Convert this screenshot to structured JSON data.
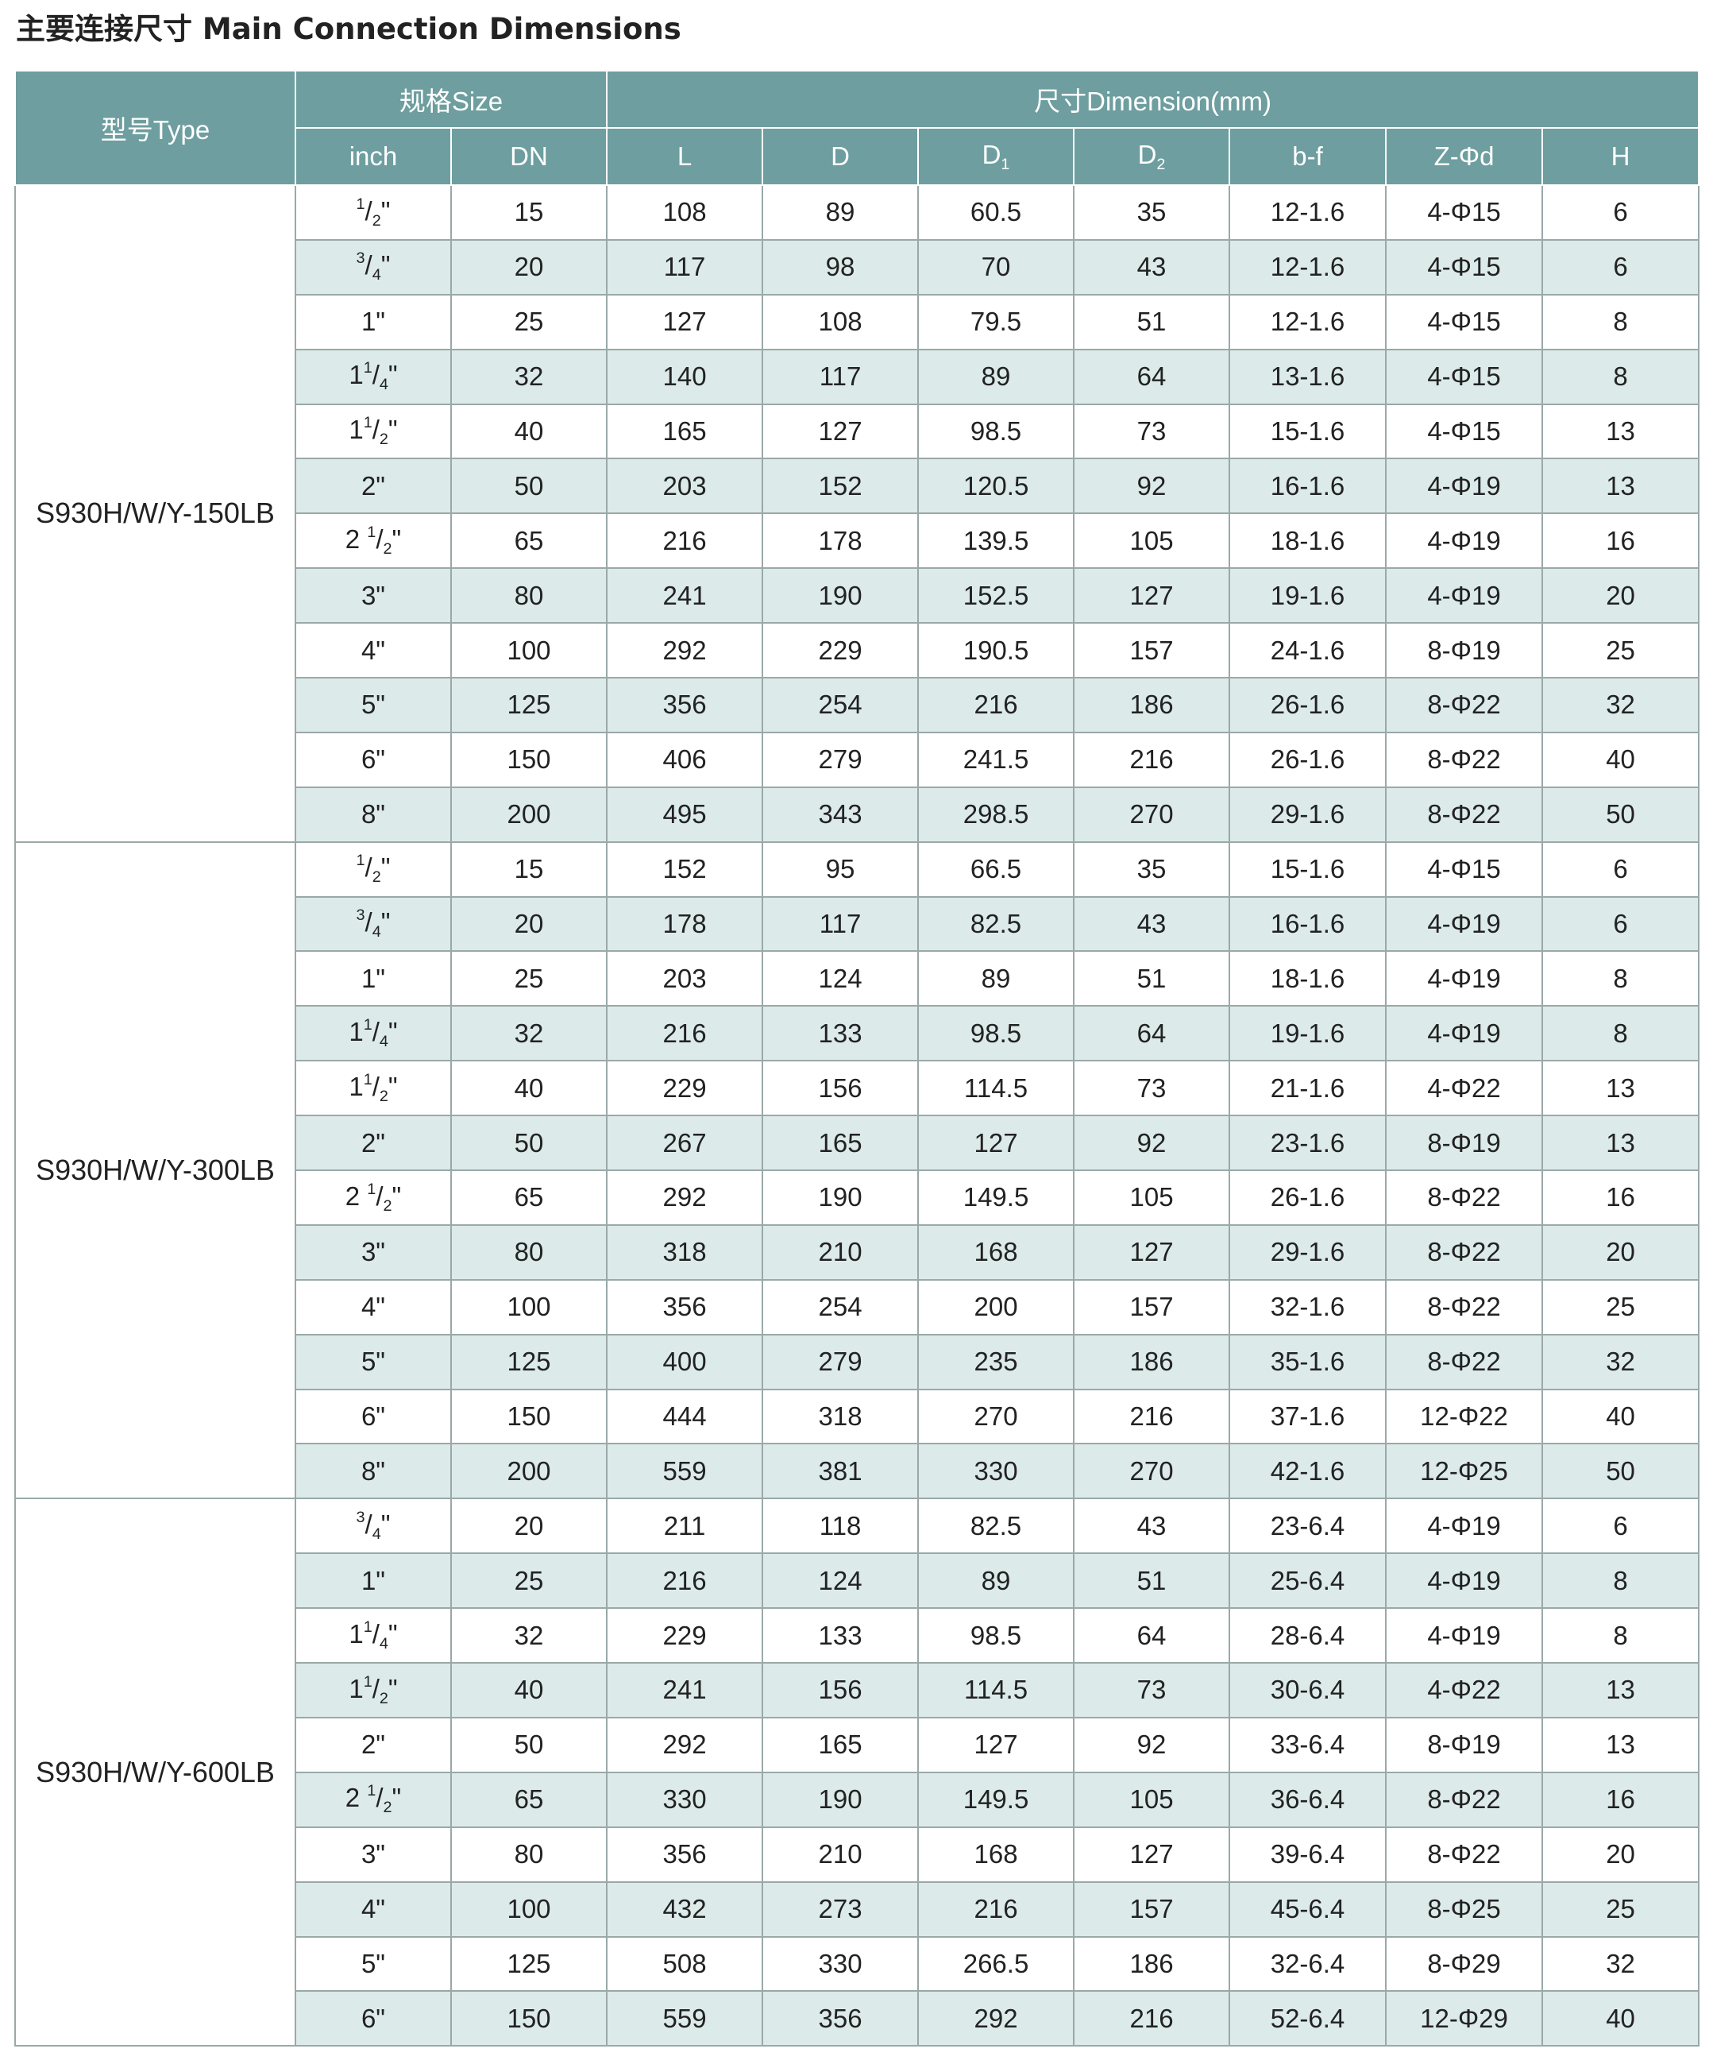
{
  "title": "主要连接尺寸 Main Connection Dimensions",
  "headers": {
    "type": "型号Type",
    "size": "规格Size",
    "dimension": "尺寸Dimension(mm)",
    "inch": "inch",
    "dn": "DN",
    "L": "L",
    "D": "D",
    "D1": "D1",
    "D2": "D2",
    "bf": "b-f",
    "zd": "Z-Φd",
    "H": "H"
  },
  "groups": [
    {
      "model": "S930H/W/Y-150LB",
      "rows": [
        {
          "inch": "1/2\"",
          "dn": "15",
          "L": "108",
          "D": "89",
          "D1": "60.5",
          "D2": "35",
          "bf": "12-1.6",
          "zd": "4-Φ15",
          "H": "6"
        },
        {
          "inch": "3/4\"",
          "dn": "20",
          "L": "117",
          "D": "98",
          "D1": "70",
          "D2": "43",
          "bf": "12-1.6",
          "zd": "4-Φ15",
          "H": "6"
        },
        {
          "inch": "1\"",
          "dn": "25",
          "L": "127",
          "D": "108",
          "D1": "79.5",
          "D2": "51",
          "bf": "12-1.6",
          "zd": "4-Φ15",
          "H": "8"
        },
        {
          "inch": "1 1/4\"",
          "dn": "32",
          "L": "140",
          "D": "117",
          "D1": "89",
          "D2": "64",
          "bf": "13-1.6",
          "zd": "4-Φ15",
          "H": "8"
        },
        {
          "inch": "1 1/2\"",
          "dn": "40",
          "L": "165",
          "D": "127",
          "D1": "98.5",
          "D2": "73",
          "bf": "15-1.6",
          "zd": "4-Φ15",
          "H": "13"
        },
        {
          "inch": "2\"",
          "dn": "50",
          "L": "203",
          "D": "152",
          "D1": "120.5",
          "D2": "92",
          "bf": "16-1.6",
          "zd": "4-Φ19",
          "H": "13"
        },
        {
          "inch": "2 1/2\"",
          "dn": "65",
          "L": "216",
          "D": "178",
          "D1": "139.5",
          "D2": "105",
          "bf": "18-1.6",
          "zd": "4-Φ19",
          "H": "16"
        },
        {
          "inch": "3\"",
          "dn": "80",
          "L": "241",
          "D": "190",
          "D1": "152.5",
          "D2": "127",
          "bf": "19-1.6",
          "zd": "4-Φ19",
          "H": "20"
        },
        {
          "inch": "4\"",
          "dn": "100",
          "L": "292",
          "D": "229",
          "D1": "190.5",
          "D2": "157",
          "bf": "24-1.6",
          "zd": "8-Φ19",
          "H": "25"
        },
        {
          "inch": "5\"",
          "dn": "125",
          "L": "356",
          "D": "254",
          "D1": "216",
          "D2": "186",
          "bf": "26-1.6",
          "zd": "8-Φ22",
          "H": "32"
        },
        {
          "inch": "6\"",
          "dn": "150",
          "L": "406",
          "D": "279",
          "D1": "241.5",
          "D2": "216",
          "bf": "26-1.6",
          "zd": "8-Φ22",
          "H": "40"
        },
        {
          "inch": "8\"",
          "dn": "200",
          "L": "495",
          "D": "343",
          "D1": "298.5",
          "D2": "270",
          "bf": "29-1.6",
          "zd": "8-Φ22",
          "H": "50"
        }
      ]
    },
    {
      "model": "S930H/W/Y-300LB",
      "rows": [
        {
          "inch": "1/2\"",
          "dn": "15",
          "L": "152",
          "D": "95",
          "D1": "66.5",
          "D2": "35",
          "bf": "15-1.6",
          "zd": "4-Φ15",
          "H": "6"
        },
        {
          "inch": "3/4\"",
          "dn": "20",
          "L": "178",
          "D": "117",
          "D1": "82.5",
          "D2": "43",
          "bf": "16-1.6",
          "zd": "4-Φ19",
          "H": "6"
        },
        {
          "inch": "1\"",
          "dn": "25",
          "L": "203",
          "D": "124",
          "D1": "89",
          "D2": "51",
          "bf": "18-1.6",
          "zd": "4-Φ19",
          "H": "8"
        },
        {
          "inch": "1 1/4\"",
          "dn": "32",
          "L": "216",
          "D": "133",
          "D1": "98.5",
          "D2": "64",
          "bf": "19-1.6",
          "zd": "4-Φ19",
          "H": "8"
        },
        {
          "inch": "1 1/2\"",
          "dn": "40",
          "L": "229",
          "D": "156",
          "D1": "114.5",
          "D2": "73",
          "bf": "21-1.6",
          "zd": "4-Φ22",
          "H": "13"
        },
        {
          "inch": "2\"",
          "dn": "50",
          "L": "267",
          "D": "165",
          "D1": "127",
          "D2": "92",
          "bf": "23-1.6",
          "zd": "8-Φ19",
          "H": "13"
        },
        {
          "inch": "2 1/2\"",
          "dn": "65",
          "L": "292",
          "D": "190",
          "D1": "149.5",
          "D2": "105",
          "bf": "26-1.6",
          "zd": "8-Φ22",
          "H": "16"
        },
        {
          "inch": "3\"",
          "dn": "80",
          "L": "318",
          "D": "210",
          "D1": "168",
          "D2": "127",
          "bf": "29-1.6",
          "zd": "8-Φ22",
          "H": "20"
        },
        {
          "inch": "4\"",
          "dn": "100",
          "L": "356",
          "D": "254",
          "D1": "200",
          "D2": "157",
          "bf": "32-1.6",
          "zd": "8-Φ22",
          "H": "25"
        },
        {
          "inch": "5\"",
          "dn": "125",
          "L": "400",
          "D": "279",
          "D1": "235",
          "D2": "186",
          "bf": "35-1.6",
          "zd": "8-Φ22",
          "H": "32"
        },
        {
          "inch": "6\"",
          "dn": "150",
          "L": "444",
          "D": "318",
          "D1": "270",
          "D2": "216",
          "bf": "37-1.6",
          "zd": "12-Φ22",
          "H": "40"
        },
        {
          "inch": "8\"",
          "dn": "200",
          "L": "559",
          "D": "381",
          "D1": "330",
          "D2": "270",
          "bf": "42-1.6",
          "zd": "12-Φ25",
          "H": "50"
        }
      ]
    },
    {
      "model": "S930H/W/Y-600LB",
      "rows": [
        {
          "inch": "3/4\"",
          "dn": "20",
          "L": "211",
          "D": "118",
          "D1": "82.5",
          "D2": "43",
          "bf": "23-6.4",
          "zd": "4-Φ19",
          "H": "6"
        },
        {
          "inch": "1\"",
          "dn": "25",
          "L": "216",
          "D": "124",
          "D1": "89",
          "D2": "51",
          "bf": "25-6.4",
          "zd": "4-Φ19",
          "H": "8"
        },
        {
          "inch": "1 1/4\"",
          "dn": "32",
          "L": "229",
          "D": "133",
          "D1": "98.5",
          "D2": "64",
          "bf": "28-6.4",
          "zd": "4-Φ19",
          "H": "8"
        },
        {
          "inch": "1 1/2\"",
          "dn": "40",
          "L": "241",
          "D": "156",
          "D1": "114.5",
          "D2": "73",
          "bf": "30-6.4",
          "zd": "4-Φ22",
          "H": "13"
        },
        {
          "inch": "2\"",
          "dn": "50",
          "L": "292",
          "D": "165",
          "D1": "127",
          "D2": "92",
          "bf": "33-6.4",
          "zd": "8-Φ19",
          "H": "13"
        },
        {
          "inch": "2 1/2\"",
          "dn": "65",
          "L": "330",
          "D": "190",
          "D1": "149.5",
          "D2": "105",
          "bf": "36-6.4",
          "zd": "8-Φ22",
          "H": "16"
        },
        {
          "inch": "3\"",
          "dn": "80",
          "L": "356",
          "D": "210",
          "D1": "168",
          "D2": "127",
          "bf": "39-6.4",
          "zd": "8-Φ22",
          "H": "20"
        },
        {
          "inch": "4\"",
          "dn": "100",
          "L": "432",
          "D": "273",
          "D1": "216",
          "D2": "157",
          "bf": "45-6.4",
          "zd": "8-Φ25",
          "H": "25"
        },
        {
          "inch": "5\"",
          "dn": "125",
          "L": "508",
          "D": "330",
          "D1": "266.5",
          "D2": "186",
          "bf": "32-6.4",
          "zd": "8-Φ29",
          "H": "32"
        },
        {
          "inch": "6\"",
          "dn": "150",
          "L": "559",
          "D": "356",
          "D1": "292",
          "D2": "216",
          "bf": "52-6.4",
          "zd": "12-Φ29",
          "H": "40"
        }
      ]
    }
  ],
  "colors": {
    "header_bg": "#6e9e9f",
    "header_text": "#ffffff",
    "stripe_bg": "#dceaea",
    "border": "#9aa8a8"
  }
}
